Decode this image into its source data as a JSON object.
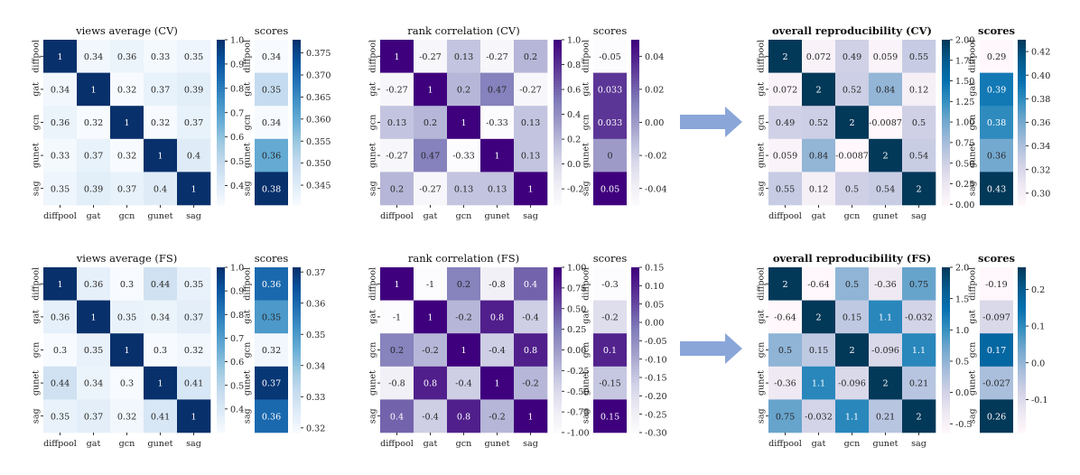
{
  "chart_data": [
    {
      "type": "heatmap",
      "title": "views average (CV)",
      "row": 0,
      "col": 0,
      "palette": "blues",
      "bold": false,
      "labels": [
        "diffpool",
        "gat",
        "gcn",
        "gunet",
        "sag"
      ],
      "values": [
        [
          1,
          0.34,
          0.36,
          0.33,
          0.35
        ],
        [
          0.34,
          1,
          0.32,
          0.37,
          0.39
        ],
        [
          0.36,
          0.32,
          1,
          0.32,
          0.37
        ],
        [
          0.33,
          0.37,
          0.32,
          1,
          0.4
        ],
        [
          0.35,
          0.39,
          0.37,
          0.4,
          1
        ]
      ],
      "value_labels": [
        [
          "1",
          "0.34",
          "0.36",
          "0.33",
          "0.35"
        ],
        [
          "0.34",
          "1",
          "0.32",
          "0.37",
          "0.39"
        ],
        [
          "0.36",
          "0.32",
          "1",
          "0.32",
          "0.37"
        ],
        [
          "0.33",
          "0.37",
          "0.32",
          "1",
          "0.4"
        ],
        [
          "0.35",
          "0.39",
          "0.37",
          "0.4",
          "1"
        ]
      ],
      "vrange": [
        0.32,
        1.0
      ],
      "ticks": [
        "0.4",
        "0.5",
        "0.6",
        "0.7",
        "0.8",
        "0.9",
        "1.0"
      ],
      "scores": {
        "title": "scores",
        "values": [
          0.34,
          0.35,
          0.34,
          0.36,
          0.38
        ],
        "labels": [
          "0.34",
          "0.35",
          "0.34",
          "0.36",
          "0.38"
        ],
        "vrange": [
          0.3405,
          0.378
        ],
        "ticks": [
          "0.345",
          "0.350",
          "0.355",
          "0.360",
          "0.365",
          "0.370",
          "0.375"
        ]
      }
    },
    {
      "type": "heatmap",
      "title": "rank correlation (CV)",
      "row": 0,
      "col": 1,
      "palette": "purples",
      "bold": false,
      "labels": [
        "diffpool",
        "gat",
        "gcn",
        "gunet",
        "sag"
      ],
      "values": [
        [
          1,
          -0.27,
          0.13,
          -0.27,
          0.2
        ],
        [
          -0.27,
          1,
          0.2,
          0.47,
          -0.27
        ],
        [
          0.13,
          0.2,
          1,
          -0.33,
          0.13
        ],
        [
          -0.27,
          0.47,
          -0.33,
          1,
          0.13
        ],
        [
          0.2,
          -0.27,
          0.13,
          0.13,
          1
        ]
      ],
      "value_labels": [
        [
          "1",
          "-0.27",
          "0.13",
          "-0.27",
          "0.2"
        ],
        [
          "-0.27",
          "1",
          "0.2",
          "0.47",
          "-0.27"
        ],
        [
          "0.13",
          "0.2",
          "1",
          "-0.33",
          "0.13"
        ],
        [
          "-0.27",
          "0.47",
          "-0.33",
          "1",
          "0.13"
        ],
        [
          "0.2",
          "-0.27",
          "0.13",
          "0.13",
          "1"
        ]
      ],
      "vrange": [
        -0.33,
        1.0
      ],
      "ticks": [
        "-0.2",
        "0.0",
        "0.2",
        "0.4",
        "0.6",
        "0.8",
        "1.0"
      ],
      "scores": {
        "title": "scores",
        "values": [
          -0.05,
          0.033,
          0.033,
          0,
          0.05
        ],
        "labels": [
          "-0.05",
          "0.033",
          "0.033",
          "0",
          "0.05"
        ],
        "vrange": [
          -0.05,
          0.05
        ],
        "ticks": [
          "-0.04",
          "-0.02",
          "0.00",
          "0.02",
          "0.04"
        ]
      }
    },
    {
      "type": "heatmap",
      "title": "overall reproducibility (CV)",
      "row": 0,
      "col": 2,
      "palette": "pubu",
      "bold": true,
      "labels": [
        "diffpool",
        "gat",
        "gcn",
        "gunet",
        "sag"
      ],
      "values": [
        [
          2,
          0.072,
          0.49,
          0.059,
          0.55
        ],
        [
          0.072,
          2,
          0.52,
          0.84,
          0.12
        ],
        [
          0.49,
          0.52,
          2,
          -0.0087,
          0.5
        ],
        [
          0.059,
          0.84,
          -0.0087,
          2,
          0.54
        ],
        [
          0.55,
          0.12,
          0.5,
          0.54,
          2
        ]
      ],
      "value_labels": [
        [
          "2",
          "0.072",
          "0.49",
          "0.059",
          "0.55"
        ],
        [
          "0.072",
          "2",
          "0.52",
          "0.84",
          "0.12"
        ],
        [
          "0.49",
          "0.52",
          "2",
          "-0.0087",
          "0.5"
        ],
        [
          "0.059",
          "0.84",
          "-0.0087",
          "2",
          "0.54"
        ],
        [
          "0.55",
          "0.12",
          "0.5",
          "0.54",
          "2"
        ]
      ],
      "vrange": [
        -0.0087,
        2.0
      ],
      "ticks": [
        "0.00",
        "0.25",
        "0.50",
        "0.75",
        "1.00",
        "1.25",
        "1.50",
        "1.75",
        "2.00"
      ],
      "scores": {
        "title": "scores",
        "values": [
          0.29,
          0.39,
          0.38,
          0.36,
          0.43
        ],
        "labels": [
          "0.29",
          "0.39",
          "0.38",
          "0.36",
          "0.43"
        ],
        "vrange": [
          0.29,
          0.43
        ],
        "ticks": [
          "0.30",
          "0.32",
          "0.34",
          "0.36",
          "0.38",
          "0.40",
          "0.42"
        ]
      }
    },
    {
      "type": "heatmap",
      "title": "views average (FS)",
      "row": 1,
      "col": 0,
      "palette": "blues",
      "bold": false,
      "labels": [
        "diffpool",
        "gat",
        "gcn",
        "gunet",
        "sag"
      ],
      "values": [
        [
          1,
          0.36,
          0.3,
          0.44,
          0.35
        ],
        [
          0.36,
          1,
          0.35,
          0.34,
          0.37
        ],
        [
          0.3,
          0.35,
          1,
          0.3,
          0.32
        ],
        [
          0.44,
          0.34,
          0.3,
          1,
          0.41
        ],
        [
          0.35,
          0.37,
          0.32,
          0.41,
          1
        ]
      ],
      "value_labels": [
        [
          "1",
          "0.36",
          "0.3",
          "0.44",
          "0.35"
        ],
        [
          "0.36",
          "1",
          "0.35",
          "0.34",
          "0.37"
        ],
        [
          "0.3",
          "0.35",
          "1",
          "0.3",
          "0.32"
        ],
        [
          "0.44",
          "0.34",
          "0.3",
          "1",
          "0.41"
        ],
        [
          "0.35",
          "0.37",
          "0.32",
          "0.41",
          "1"
        ]
      ],
      "vrange": [
        0.3,
        1.0
      ],
      "ticks": [
        "0.4",
        "0.5",
        "0.6",
        "0.7",
        "0.8",
        "0.9",
        "1.0"
      ],
      "scores": {
        "title": "scores",
        "values": [
          0.36,
          0.35,
          0.32,
          0.37,
          0.36
        ],
        "labels": [
          "0.36",
          "0.35",
          "0.32",
          "0.37",
          "0.36"
        ],
        "vrange": [
          0.3185,
          0.3715
        ],
        "ticks": [
          "0.32",
          "0.33",
          "0.34",
          "0.35",
          "0.36",
          "0.37"
        ]
      }
    },
    {
      "type": "heatmap",
      "title": "rank correlation (FS)",
      "row": 1,
      "col": 1,
      "palette": "purples",
      "bold": false,
      "labels": [
        "diffpool",
        "gat",
        "gcn",
        "gunet",
        "sag"
      ],
      "values": [
        [
          1,
          -1,
          0.2,
          -0.8,
          0.4
        ],
        [
          -1,
          1,
          -0.2,
          0.8,
          -0.4
        ],
        [
          0.2,
          -0.2,
          1,
          -0.4,
          0.8
        ],
        [
          -0.8,
          0.8,
          -0.4,
          1,
          -0.2
        ],
        [
          0.4,
          -0.4,
          0.8,
          -0.2,
          1
        ]
      ],
      "value_labels": [
        [
          "1",
          "-1",
          "0.2",
          "-0.8",
          "0.4"
        ],
        [
          "-1",
          "1",
          "-0.2",
          "0.8",
          "-0.4"
        ],
        [
          "0.2",
          "-0.2",
          "1",
          "-0.4",
          "0.8"
        ],
        [
          "-0.8",
          "0.8",
          "-0.4",
          "1",
          "-0.2"
        ],
        [
          "0.4",
          "-0.4",
          "0.8",
          "-0.2",
          "1"
        ]
      ],
      "vrange": [
        -1.0,
        1.0
      ],
      "ticks": [
        "-1.00",
        "-0.75",
        "-0.50",
        "-0.25",
        "0.00",
        "0.25",
        "0.50",
        "0.75",
        "1.00"
      ],
      "scores": {
        "title": "scores",
        "values": [
          -0.3,
          -0.2,
          0.1,
          -0.15,
          0.15
        ],
        "labels": [
          "-0.3",
          "-0.2",
          "0.1",
          "-0.15",
          "0.15"
        ],
        "vrange": [
          -0.3,
          0.15
        ],
        "ticks": [
          "-0.30",
          "-0.25",
          "-0.20",
          "-0.15",
          "-0.10",
          "-0.05",
          "0.00",
          "0.05",
          "0.10",
          "0.15"
        ]
      }
    },
    {
      "type": "heatmap",
      "title": "overall reproducibility (FS)",
      "row": 1,
      "col": 2,
      "palette": "pubu",
      "bold": true,
      "labels": [
        "diffpool",
        "gat",
        "gcn",
        "gunet",
        "sag"
      ],
      "values": [
        [
          2,
          -0.64,
          0.5,
          -0.36,
          0.75
        ],
        [
          -0.64,
          2,
          0.15,
          1.1,
          -0.032
        ],
        [
          0.5,
          0.15,
          2,
          -0.096,
          1.1
        ],
        [
          -0.36,
          1.1,
          -0.096,
          2,
          0.21
        ],
        [
          0.75,
          -0.032,
          1.1,
          0.21,
          2
        ]
      ],
      "value_labels": [
        [
          "2",
          "-0.64",
          "0.5",
          "-0.36",
          "0.75"
        ],
        [
          "-0.64",
          "2",
          "0.15",
          "1.1",
          "-0.032"
        ],
        [
          "0.5",
          "0.15",
          "2",
          "-0.096",
          "1.1"
        ],
        [
          "-0.36",
          "1.1",
          "-0.096",
          "2",
          "0.21"
        ],
        [
          "0.75",
          "-0.032",
          "1.1",
          "0.21",
          "2"
        ]
      ],
      "vrange": [
        -0.64,
        2.0
      ],
      "ticks": [
        "-0.5",
        "0.0",
        "0.5",
        "1.0",
        "1.5",
        "2.0"
      ],
      "scores": {
        "title": "scores",
        "values": [
          -0.19,
          -0.097,
          0.17,
          -0.027,
          0.26
        ],
        "labels": [
          "-0.19",
          "-0.097",
          "0.17",
          "-0.027",
          "0.26"
        ],
        "vrange": [
          -0.19,
          0.26
        ],
        "ticks": [
          "-0.1",
          "0.0",
          "0.1",
          "0.2"
        ]
      }
    }
  ],
  "arrows": {
    "color": "#8aa6d9"
  }
}
